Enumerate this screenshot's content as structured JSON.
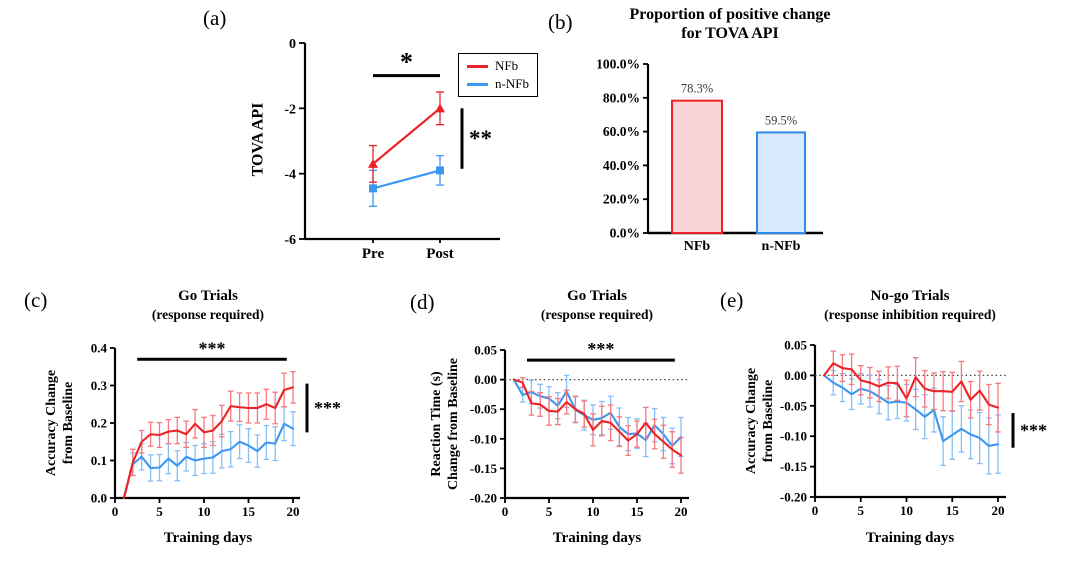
{
  "figure": {
    "background": "#ffffff",
    "colors": {
      "nfb": "#EB2227",
      "nfb_error": "#F5797D",
      "nnfb": "#3D97F0",
      "nnfb_error": "#85BFF7",
      "axis": "#000000"
    }
  },
  "chart_data": [
    {
      "panel": "a",
      "panel_label": "(a)",
      "type": "line",
      "title_lines": [],
      "ylabel_lines": [
        "TOVA API"
      ],
      "categories": [
        "Pre",
        "Post"
      ],
      "ylim": [
        -6,
        0
      ],
      "yticks": [
        0,
        -2,
        -4,
        -6
      ],
      "ytick_labels": [
        "0",
        "-2",
        "-4",
        "-6"
      ],
      "legend": {
        "position": "top-right",
        "entries": [
          "NFb",
          "n-NFb"
        ]
      },
      "series": [
        {
          "name": "NFb",
          "color": "#EB2227",
          "err_color": "#EB2227",
          "marker": "triangle",
          "values": [
            -3.7,
            -2.0
          ],
          "errors": [
            0.56,
            0.5
          ]
        },
        {
          "name": "n-NFb",
          "color": "#3D97F0",
          "err_color": "#3D97F0",
          "marker": "square",
          "values": [
            -4.45,
            -3.9
          ],
          "errors": [
            0.55,
            0.45
          ]
        }
      ],
      "annotations": [
        {
          "kind": "sig-h",
          "text": "*",
          "from_x": "Pre",
          "to_x": "Post",
          "y": -1.0
        },
        {
          "kind": "sig-v",
          "text": "**",
          "from_y": -2.0,
          "to_y": -3.85
        }
      ]
    },
    {
      "panel": "b",
      "panel_label": "(b)",
      "type": "bar",
      "title_lines": [
        "Proportion of positive change",
        "for TOVA API"
      ],
      "ylim": [
        0,
        100
      ],
      "yticks": [
        0,
        20,
        40,
        60,
        80,
        100
      ],
      "ytick_labels": [
        "0.0%",
        "20.0%",
        "40.0%",
        "60.0%",
        "80.0%",
        "100.0%"
      ],
      "bars": [
        {
          "label": "NFb",
          "value": 78.3,
          "value_label": "78.3%",
          "fill": "#FAD4D6",
          "border": "#EB2227"
        },
        {
          "label": "n-NFb",
          "value": 59.5,
          "value_label": "59.5%",
          "fill": "#D8E9FB",
          "border": "#2D8CEA"
        }
      ]
    },
    {
      "panel": "c",
      "panel_label": "(c)",
      "type": "line",
      "title_lines": [
        "Go Trials",
        "(response required)"
      ],
      "ylabel_lines": [
        "Accuracy Change",
        "from Baseline"
      ],
      "xlabel": "Training days",
      "x": [
        1,
        2,
        3,
        4,
        5,
        6,
        7,
        8,
        9,
        10,
        11,
        12,
        13,
        14,
        15,
        16,
        17,
        18,
        19,
        20
      ],
      "xticks": [
        0,
        5,
        10,
        15,
        20
      ],
      "ylim": [
        0,
        0.4
      ],
      "yticks": [
        0.4,
        0.3,
        0.2,
        0.1,
        0.0
      ],
      "ytick_labels": [
        "0.4",
        "0.3",
        "0.2",
        "0.1",
        "0.0"
      ],
      "series": [
        {
          "name": "NFb",
          "color": "#EB2227",
          "err_color": "#F5797D",
          "values": [
            0,
            0.095,
            0.15,
            0.17,
            0.168,
            0.177,
            0.18,
            0.17,
            0.198,
            0.175,
            0.18,
            0.205,
            0.245,
            0.242,
            0.24,
            0.24,
            0.25,
            0.24,
            0.288,
            0.295
          ],
          "errors": [
            0,
            0.035,
            0.03,
            0.032,
            0.033,
            0.032,
            0.035,
            0.035,
            0.038,
            0.04,
            0.04,
            0.042,
            0.04,
            0.038,
            0.04,
            0.04,
            0.04,
            0.042,
            0.045,
            0.042
          ]
        },
        {
          "name": "n-NFb",
          "color": "#3D97F0",
          "err_color": "#85BFF7",
          "values": [
            0,
            0.09,
            0.11,
            0.08,
            0.081,
            0.105,
            0.086,
            0.11,
            0.1,
            0.105,
            0.108,
            0.125,
            0.13,
            0.15,
            0.14,
            0.125,
            0.148,
            0.145,
            0.198,
            0.185
          ],
          "errors": [
            0,
            0.03,
            0.035,
            0.035,
            0.035,
            0.04,
            0.04,
            0.038,
            0.04,
            0.04,
            0.042,
            0.045,
            0.047,
            0.045,
            0.045,
            0.043,
            0.045,
            0.045,
            0.045,
            0.045
          ]
        }
      ],
      "annotations": [
        {
          "kind": "sig-h",
          "text": "***",
          "from_x": 2.5,
          "to_x": 19.3,
          "y": 0.37
        },
        {
          "kind": "sig-v",
          "text": "***",
          "from_y": 0.305,
          "to_y": 0.175
        }
      ]
    },
    {
      "panel": "d",
      "panel_label": "(d)",
      "type": "line",
      "title_lines": [
        "Go Trials",
        "(response required)"
      ],
      "ylabel_lines": [
        "Reaction Time (s)",
        "Change from Baseline"
      ],
      "xlabel": "Training days",
      "x": [
        1,
        2,
        3,
        4,
        5,
        6,
        7,
        8,
        9,
        10,
        11,
        12,
        13,
        14,
        15,
        16,
        17,
        18,
        19,
        20
      ],
      "xticks": [
        0,
        5,
        10,
        15,
        20
      ],
      "ylim": [
        -0.2,
        0.05
      ],
      "yticks": [
        0.05,
        0.0,
        -0.05,
        -0.1,
        -0.15,
        -0.2
      ],
      "ytick_labels": [
        "0.05",
        "0.00",
        "-0.05",
        "-0.10",
        "-0.15",
        "-0.20"
      ],
      "zero_line": true,
      "series": [
        {
          "name": "NFb",
          "color": "#EB2227",
          "err_color": "#F5797D",
          "values": [
            0,
            -0.005,
            -0.04,
            -0.042,
            -0.053,
            -0.054,
            -0.038,
            -0.05,
            -0.058,
            -0.085,
            -0.07,
            -0.073,
            -0.088,
            -0.103,
            -0.092,
            -0.073,
            -0.092,
            -0.105,
            -0.118,
            -0.128
          ],
          "errors": [
            0,
            0.008,
            0.02,
            0.02,
            0.024,
            0.022,
            0.02,
            0.022,
            0.022,
            0.027,
            0.025,
            0.03,
            0.025,
            0.025,
            0.022,
            0.026,
            0.025,
            0.028,
            0.03,
            0.03
          ]
        },
        {
          "name": "n-NFb",
          "color": "#3D97F0",
          "err_color": "#85BFF7",
          "values": [
            0,
            -0.026,
            -0.021,
            -0.028,
            -0.032,
            -0.044,
            -0.02,
            -0.051,
            -0.06,
            -0.068,
            -0.065,
            -0.056,
            -0.08,
            -0.092,
            -0.091,
            -0.102,
            -0.077,
            -0.092,
            -0.112,
            -0.097
          ],
          "errors": [
            0,
            0.012,
            0.02,
            0.02,
            0.02,
            0.022,
            0.027,
            0.022,
            0.025,
            0.025,
            0.028,
            0.028,
            0.032,
            0.028,
            0.025,
            0.028,
            0.028,
            0.028,
            0.03,
            0.033
          ]
        }
      ],
      "annotations": [
        {
          "kind": "sig-h",
          "text": "***",
          "from_x": 2.5,
          "to_x": 19.3,
          "y": 0.033
        }
      ]
    },
    {
      "panel": "e",
      "panel_label": "(e)",
      "type": "line",
      "title_lines": [
        "No-go Trials",
        "(response inhibition required)"
      ],
      "ylabel_lines": [
        "Accuracy Change",
        "from Baseline"
      ],
      "xlabel": "Training days",
      "x": [
        1,
        2,
        3,
        4,
        5,
        6,
        7,
        8,
        9,
        10,
        11,
        12,
        13,
        14,
        15,
        16,
        17,
        18,
        19,
        20
      ],
      "xticks": [
        0,
        5,
        10,
        15,
        20
      ],
      "ylim": [
        -0.2,
        0.05
      ],
      "yticks": [
        0.05,
        0.0,
        -0.05,
        -0.1,
        -0.15,
        -0.2
      ],
      "ytick_labels": [
        "0.05",
        "0.00",
        "-0.05",
        "-0.10",
        "-0.15",
        "-0.20"
      ],
      "zero_line": true,
      "series": [
        {
          "name": "NFb",
          "color": "#EB2227",
          "err_color": "#F5797D",
          "values": [
            0,
            0.02,
            0.012,
            0.01,
            -0.008,
            -0.012,
            -0.018,
            -0.012,
            -0.013,
            -0.038,
            -0.003,
            -0.022,
            -0.026,
            -0.026,
            -0.027,
            -0.01,
            -0.04,
            -0.025,
            -0.048,
            -0.053
          ],
          "errors": [
            0,
            0.02,
            0.022,
            0.025,
            0.024,
            0.025,
            0.025,
            0.026,
            0.028,
            0.03,
            0.032,
            0.03,
            0.03,
            0.032,
            0.032,
            0.033,
            0.03,
            0.032,
            0.033,
            0.04
          ]
        },
        {
          "name": "n-NFb",
          "color": "#3D97F0",
          "err_color": "#85BFF7",
          "values": [
            0,
            -0.012,
            -0.02,
            -0.031,
            -0.022,
            -0.026,
            -0.035,
            -0.045,
            -0.043,
            -0.045,
            -0.056,
            -0.068,
            -0.057,
            -0.108,
            -0.098,
            -0.088,
            -0.097,
            -0.103,
            -0.116,
            -0.113
          ],
          "errors": [
            0,
            0.02,
            0.023,
            0.025,
            0.025,
            0.026,
            0.028,
            0.028,
            0.028,
            0.03,
            0.033,
            0.036,
            0.036,
            0.04,
            0.04,
            0.038,
            0.04,
            0.042,
            0.046,
            0.048
          ]
        }
      ],
      "annotations": [
        {
          "kind": "sig-v",
          "text": "***",
          "from_y": -0.062,
          "to_y": -0.119
        }
      ]
    }
  ]
}
